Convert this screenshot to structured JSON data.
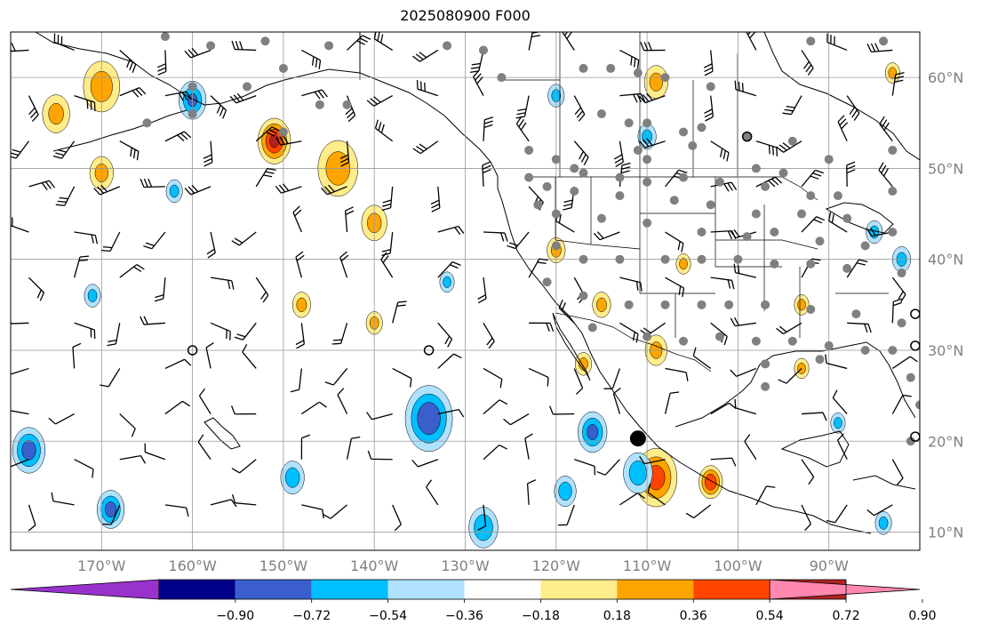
{
  "title": "2025080900 F000",
  "extent": {
    "lon": [
      -180,
      -80
    ],
    "lat": [
      8,
      65
    ]
  },
  "gridlines": true,
  "lon_ticks": [
    {
      "value": -170,
      "label": "170°W"
    },
    {
      "value": -160,
      "label": "160°W"
    },
    {
      "value": -150,
      "label": "150°W"
    },
    {
      "value": -140,
      "label": "140°W"
    },
    {
      "value": -130,
      "label": "130°W"
    },
    {
      "value": -120,
      "label": "120°W"
    },
    {
      "value": -110,
      "label": "110°W"
    },
    {
      "value": -100,
      "label": "100°W"
    },
    {
      "value": -90,
      "label": "90°W"
    }
  ],
  "lat_ticks": [
    {
      "value": 60,
      "label": "60°N"
    },
    {
      "value": 50,
      "label": "50°N"
    },
    {
      "value": 40,
      "label": "40°N"
    },
    {
      "value": 30,
      "label": "30°N"
    },
    {
      "value": 20,
      "label": "20°N"
    },
    {
      "value": 10,
      "label": "10°N"
    }
  ],
  "colorbar": {
    "colors": [
      "#9932cc",
      "#00008b",
      "#3a5fcd",
      "#00bfff",
      "#b0e2ff",
      "#ffffff",
      "#ffec8b",
      "#ffa500",
      "#ff4500",
      "#b22222",
      "#ff88b0"
    ],
    "tick_labels": [
      "−0.90",
      "−0.72",
      "−0.54",
      "−0.36",
      "−0.18",
      "0.18",
      "0.36",
      "0.54",
      "0.72",
      "0.90"
    ]
  },
  "markers": {
    "grey_dots": [
      [
        -163,
        64.5
      ],
      [
        -158,
        63.5
      ],
      [
        -152,
        64
      ],
      [
        -145,
        63.5
      ],
      [
        -154,
        59
      ],
      [
        -150,
        61
      ],
      [
        -160,
        59
      ],
      [
        -146,
        57
      ],
      [
        -143,
        57
      ],
      [
        -165,
        55
      ],
      [
        -160,
        56
      ],
      [
        -150,
        54
      ],
      [
        -132,
        63.5
      ],
      [
        -128,
        63
      ],
      [
        -126,
        60
      ],
      [
        -117,
        61
      ],
      [
        -114,
        61
      ],
      [
        -111,
        60.5
      ],
      [
        -108,
        60
      ],
      [
        -103,
        59
      ],
      [
        -92,
        64
      ],
      [
        -84,
        64
      ],
      [
        -115,
        56
      ],
      [
        -112,
        55
      ],
      [
        -110,
        55
      ],
      [
        -106,
        54
      ],
      [
        -104,
        54.5
      ],
      [
        -99,
        53.5
      ],
      [
        -94,
        53
      ],
      [
        -111,
        52
      ],
      [
        -110,
        51
      ],
      [
        -105,
        52.5
      ],
      [
        -98,
        50
      ],
      [
        -95,
        49.5
      ],
      [
        -90,
        51
      ],
      [
        -83,
        52
      ],
      [
        -123,
        52
      ],
      [
        -120,
        51
      ],
      [
        -118,
        50
      ],
      [
        -117,
        49.5
      ],
      [
        -113,
        49
      ],
      [
        -110,
        48.5
      ],
      [
        -106,
        49
      ],
      [
        -102,
        48.5
      ],
      [
        -97,
        48
      ],
      [
        -92,
        47
      ],
      [
        -89,
        47
      ],
      [
        -83,
        47.5
      ],
      [
        -123,
        49
      ],
      [
        -121,
        48
      ],
      [
        -118,
        47.5
      ],
      [
        -113,
        47
      ],
      [
        -107,
        46.5
      ],
      [
        -103,
        46
      ],
      [
        -98,
        45
      ],
      [
        -93,
        45
      ],
      [
        -88,
        44.5
      ],
      [
        -83,
        43
      ],
      [
        -122,
        46
      ],
      [
        -120,
        45
      ],
      [
        -115,
        44.5
      ],
      [
        -110,
        44
      ],
      [
        -104,
        43
      ],
      [
        -99,
        42.5
      ],
      [
        -96,
        43
      ],
      [
        -91,
        42
      ],
      [
        -86,
        41.5
      ],
      [
        -120,
        41.5
      ],
      [
        -117,
        40
      ],
      [
        -113,
        40
      ],
      [
        -108,
        40
      ],
      [
        -104,
        40
      ],
      [
        -100,
        40
      ],
      [
        -96,
        39.5
      ],
      [
        -92,
        39.5
      ],
      [
        -88,
        39
      ],
      [
        -82,
        38.5
      ],
      [
        -121,
        37.5
      ],
      [
        -117,
        36
      ],
      [
        -112,
        35
      ],
      [
        -108,
        35
      ],
      [
        -104,
        35
      ],
      [
        -101,
        35
      ],
      [
        -97,
        35
      ],
      [
        -92,
        34.5
      ],
      [
        -87,
        34
      ],
      [
        -82,
        33
      ],
      [
        -116,
        32.5
      ],
      [
        -110,
        31.5
      ],
      [
        -106,
        31
      ],
      [
        -102,
        31.5
      ],
      [
        -98,
        31
      ],
      [
        -94,
        31
      ],
      [
        -90,
        30.5
      ],
      [
        -86,
        30
      ],
      [
        -83,
        30
      ],
      [
        -97,
        28.5
      ],
      [
        -91,
        29
      ],
      [
        -81,
        27
      ],
      [
        -97,
        26
      ],
      [
        -80,
        24
      ],
      [
        -81,
        20
      ]
    ],
    "open_circles": [
      [
        -134,
        30
      ],
      [
        -160,
        30
      ],
      [
        -99,
        53.5
      ],
      [
        -80.5,
        34
      ],
      [
        -80.5,
        30.5
      ],
      [
        -80.5,
        20.5
      ]
    ],
    "black_dot": [
      -111,
      20.3
    ]
  },
  "fields": {
    "positive": [
      {
        "lon": -170,
        "lat": 59,
        "r": 2,
        "v": 0.45
      },
      {
        "lon": -175,
        "lat": 56,
        "r": 1.5,
        "v": 0.4
      },
      {
        "lon": -151,
        "lat": 53,
        "r": 1.8,
        "v": 0.75
      },
      {
        "lon": -144,
        "lat": 50,
        "r": 2.2,
        "v": 0.45
      },
      {
        "lon": -140,
        "lat": 44,
        "r": 1.4,
        "v": 0.4
      },
      {
        "lon": -170,
        "lat": 49.5,
        "r": 1.3,
        "v": 0.4
      },
      {
        "lon": -109,
        "lat": 16,
        "r": 2.3,
        "v": 0.62
      },
      {
        "lon": -103,
        "lat": 15.5,
        "r": 1.3,
        "v": 0.7
      },
      {
        "lon": -115,
        "lat": 35,
        "r": 1.0,
        "v": 0.4
      },
      {
        "lon": -120,
        "lat": 41,
        "r": 1.0,
        "v": 0.4
      },
      {
        "lon": -109,
        "lat": 30,
        "r": 1.2,
        "v": 0.4
      },
      {
        "lon": -109,
        "lat": 59.5,
        "r": 1.3,
        "v": 0.4
      },
      {
        "lon": -140,
        "lat": 33,
        "r": 0.9,
        "v": 0.4
      },
      {
        "lon": -148,
        "lat": 35,
        "r": 1.0,
        "v": 0.4
      },
      {
        "lon": -93,
        "lat": 35,
        "r": 0.8,
        "v": 0.4
      },
      {
        "lon": -106,
        "lat": 39.5,
        "r": 0.8,
        "v": 0.4
      },
      {
        "lon": -93,
        "lat": 28,
        "r": 0.8,
        "v": 0.4
      },
      {
        "lon": -117,
        "lat": 28.5,
        "r": 0.9,
        "v": 0.4
      },
      {
        "lon": -83,
        "lat": 60.5,
        "r": 0.8,
        "v": 0.4
      }
    ],
    "negative": [
      {
        "lon": -134,
        "lat": 22.5,
        "r": 2.6,
        "v": -0.7
      },
      {
        "lon": -178,
        "lat": 19,
        "r": 1.8,
        "v": -0.62
      },
      {
        "lon": -169,
        "lat": 12.5,
        "r": 1.5,
        "v": -0.6
      },
      {
        "lon": -116,
        "lat": 21,
        "r": 1.6,
        "v": -0.58
      },
      {
        "lon": -111,
        "lat": 16.5,
        "r": 1.6,
        "v": -0.45
      },
      {
        "lon": -128,
        "lat": 10.5,
        "r": 1.6,
        "v": -0.5
      },
      {
        "lon": -119,
        "lat": 14.5,
        "r": 1.2,
        "v": -0.45
      },
      {
        "lon": -160,
        "lat": 57.5,
        "r": 1.5,
        "v": -0.55
      },
      {
        "lon": -149,
        "lat": 16,
        "r": 1.3,
        "v": -0.45
      },
      {
        "lon": -171,
        "lat": 36,
        "r": 0.9,
        "v": -0.4
      },
      {
        "lon": -132,
        "lat": 37.5,
        "r": 0.8,
        "v": -0.4
      },
      {
        "lon": -120,
        "lat": 58,
        "r": 0.9,
        "v": -0.4
      },
      {
        "lon": -110,
        "lat": 53.5,
        "r": 1.0,
        "v": -0.4
      },
      {
        "lon": -82,
        "lat": 40,
        "r": 1.0,
        "v": -0.4
      },
      {
        "lon": -85,
        "lat": 43,
        "r": 0.9,
        "v": -0.4
      },
      {
        "lon": -162,
        "lat": 47.5,
        "r": 0.9,
        "v": -0.4
      },
      {
        "lon": -89,
        "lat": 22,
        "r": 0.8,
        "v": -0.4
      },
      {
        "lon": -84,
        "lat": 11,
        "r": 0.9,
        "v": -0.4
      }
    ]
  }
}
